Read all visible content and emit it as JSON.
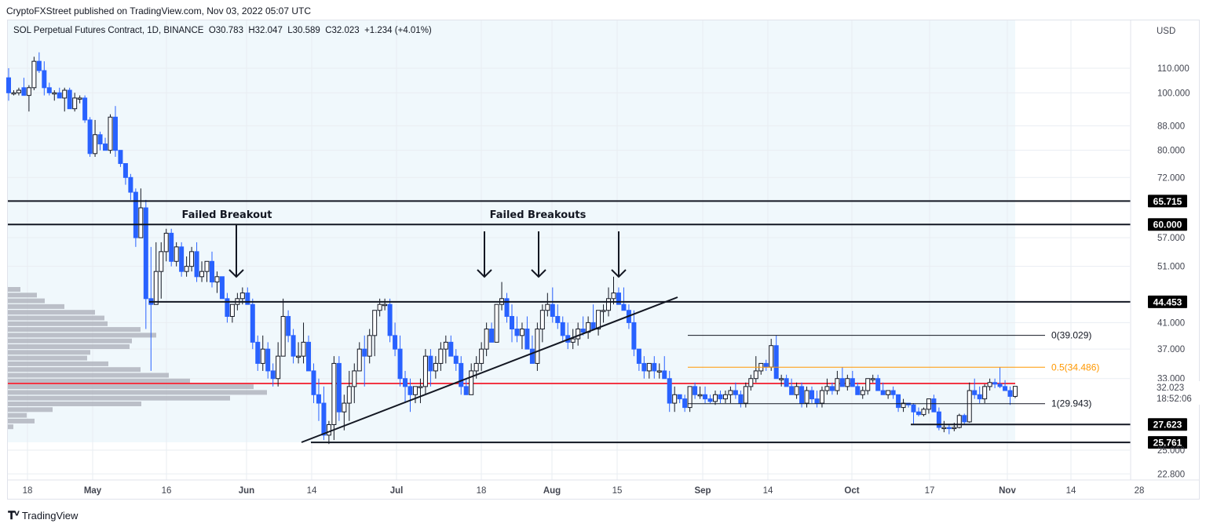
{
  "header": {
    "published_text": "CryptoFXStreet published on TradingView.com, Nov 03, 2022 05:07 UTC"
  },
  "legend": {
    "symbol": "SOL Perpetual Futures Contract, 1D, BINANCE",
    "open": "O30.783",
    "high": "H32.047",
    "low": "L30.589",
    "close": "C32.023",
    "change": "+1.234 (+4.01%)"
  },
  "footer": {
    "brand": "TradingView"
  },
  "colors": {
    "up_candle_border": "#131722",
    "up_candle_fill": "#ffffff",
    "down_candle": "#2962ff",
    "highlight_bg": "#f0f8fc",
    "poc_line": "#f23645",
    "fib_mid": "#ff9800",
    "grid": "#e9edf2",
    "volume_profile": "#b2b5be"
  },
  "chart_data": {
    "type": "candlestick",
    "title": "SOL Perpetual Futures Contract, 1D, BINANCE",
    "currency_label": "USD",
    "scale": "log",
    "ylim": [
      22.0,
      125.0
    ],
    "y_ticks": [
      "110.000",
      "100.000",
      "88.000",
      "80.000",
      "72.000",
      "57.000",
      "51.000",
      "41.000",
      "37.000",
      "33.000",
      "25.000",
      "22.800"
    ],
    "x_ticks": [
      "18",
      "May",
      "16",
      "Jun",
      "14",
      "Jul",
      "18",
      "Aug",
      "15",
      "Sep",
      "14",
      "Oct",
      "17",
      "Nov",
      "14",
      "28"
    ],
    "x_tick_bold": [
      false,
      true,
      false,
      true,
      false,
      true,
      false,
      true,
      false,
      true,
      false,
      true,
      false,
      true,
      false,
      false
    ],
    "current_price": {
      "value": "32.023",
      "countdown": "18:52:06"
    },
    "horizontal_levels": [
      {
        "label": "65.715",
        "value": 65.715
      },
      {
        "label": "60.000",
        "value": 60.0
      },
      {
        "label": "44.453",
        "value": 44.453
      },
      {
        "label": "27.623",
        "value": 27.623
      },
      {
        "label": "25.761",
        "value": 25.761
      }
    ],
    "fibonacci": [
      {
        "label": "0(39.029)",
        "value": 39.029
      },
      {
        "label": "0.5(34.486)",
        "value": 34.486
      },
      {
        "label": "1(29.943)",
        "value": 29.943
      }
    ],
    "poc_level": 31.9,
    "annotations": [
      {
        "text": "Failed Breakout",
        "arrows": 1
      },
      {
        "text": "Failed Breakouts",
        "arrows": 3
      }
    ],
    "trendline": {
      "from": [
        "Jun 13",
        25.5
      ],
      "to": [
        "Aug 26",
        46.5
      ]
    },
    "volume_profile_widths": [
      26,
      47,
      57,
      82,
      121,
      133,
      137,
      179,
      199,
      168,
      165,
      115,
      111,
      138,
      179,
      215,
      242,
      323,
      340,
      293,
      180,
      67,
      34,
      44,
      17
    ],
    "candles_ohlc_approx": [
      [
        106,
        110,
        97,
        100
      ],
      [
        100,
        101,
        99,
        100
      ],
      [
        100,
        102,
        99,
        101
      ],
      [
        102,
        106,
        99,
        99
      ],
      [
        99,
        103,
        93,
        102
      ],
      [
        102,
        115,
        101,
        113
      ],
      [
        113,
        117,
        108,
        109
      ],
      [
        109,
        113,
        99,
        102
      ],
      [
        102,
        104,
        99,
        100
      ],
      [
        100,
        101,
        97,
        100
      ],
      [
        100,
        102,
        98,
        98
      ],
      [
        98,
        102,
        93,
        101
      ],
      [
        101,
        102,
        94,
        94
      ],
      [
        94,
        100,
        93,
        98
      ],
      [
        98,
        99,
        96,
        98
      ],
      [
        98,
        99,
        89,
        90
      ],
      [
        90,
        91,
        78,
        79
      ],
      [
        79,
        90,
        78,
        85
      ],
      [
        85,
        86,
        80,
        82
      ],
      [
        82,
        84,
        80,
        80
      ],
      [
        80,
        92,
        79,
        91
      ],
      [
        91,
        95,
        78,
        80
      ],
      [
        80,
        80,
        75,
        76
      ],
      [
        76,
        76,
        70,
        72
      ],
      [
        72,
        73,
        66,
        68
      ],
      [
        68,
        69,
        55,
        57
      ],
      [
        57,
        69,
        57,
        64
      ],
      [
        64,
        66,
        40,
        45
      ],
      [
        45,
        55,
        34,
        44
      ],
      [
        44,
        56,
        45,
        50
      ],
      [
        50,
        56,
        45,
        54
      ],
      [
        54,
        59,
        52,
        58
      ],
      [
        58,
        59,
        51,
        52
      ],
      [
        52,
        56,
        51,
        55
      ],
      [
        55,
        56,
        49,
        50
      ],
      [
        50,
        53,
        49,
        51
      ],
      [
        51,
        55,
        50,
        54
      ],
      [
        54,
        56,
        48,
        49
      ],
      [
        49,
        52,
        48,
        50
      ],
      [
        50,
        52,
        48,
        52
      ],
      [
        52,
        54,
        47,
        48
      ],
      [
        48,
        50,
        46,
        49
      ],
      [
        49,
        49,
        45,
        45
      ],
      [
        45,
        46,
        41,
        42
      ],
      [
        42,
        44,
        41,
        44
      ],
      [
        44,
        46,
        43,
        45
      ],
      [
        45,
        47,
        44,
        46
      ],
      [
        46,
        47,
        44,
        44
      ],
      [
        44,
        45,
        37,
        38
      ],
      [
        38,
        39,
        34,
        35
      ],
      [
        35,
        39,
        34,
        37
      ],
      [
        37,
        38,
        33,
        34
      ],
      [
        34,
        35,
        32,
        33
      ],
      [
        33,
        38,
        32,
        36
      ],
      [
        36,
        45,
        36,
        42
      ],
      [
        42,
        43,
        38,
        39
      ],
      [
        39,
        40,
        35,
        36
      ],
      [
        36,
        38,
        35,
        36
      ],
      [
        36,
        41,
        35,
        38
      ],
      [
        38,
        39,
        34,
        34
      ],
      [
        34,
        35,
        30,
        31
      ],
      [
        31,
        33,
        28,
        30
      ],
      [
        30,
        32,
        26,
        26.5
      ],
      [
        26.5,
        28,
        25.6,
        27.6
      ],
      [
        27.6,
        36,
        26,
        35
      ],
      [
        35,
        36,
        28,
        29
      ],
      [
        29,
        31,
        27,
        30
      ],
      [
        30,
        34,
        28,
        32
      ],
      [
        32,
        35,
        30,
        34
      ],
      [
        34,
        38,
        34,
        37
      ],
      [
        37,
        39,
        32,
        36
      ],
      [
        36,
        40,
        35,
        39
      ],
      [
        39,
        42,
        36,
        43
      ],
      [
        43,
        45,
        42,
        44
      ],
      [
        44,
        45,
        43,
        44
      ],
      [
        44,
        45,
        38,
        39
      ],
      [
        39,
        41,
        36,
        37
      ],
      [
        37,
        39,
        32,
        33
      ],
      [
        33,
        34,
        30,
        32
      ],
      [
        32,
        33,
        29,
        31
      ],
      [
        31,
        32,
        30,
        32
      ],
      [
        32,
        33,
        30,
        32
      ],
      [
        32,
        37,
        31,
        36
      ],
      [
        36,
        37,
        32,
        34
      ],
      [
        34,
        36,
        33,
        35
      ],
      [
        35,
        38,
        34,
        37
      ],
      [
        37,
        39,
        35,
        38
      ],
      [
        38,
        39,
        36,
        36
      ],
      [
        36,
        37,
        34,
        35
      ],
      [
        35,
        36,
        31,
        32
      ],
      [
        32,
        33,
        31,
        31
      ],
      [
        31,
        35,
        31,
        34
      ],
      [
        34,
        36,
        33,
        35
      ],
      [
        35,
        38,
        34,
        37
      ],
      [
        37,
        41,
        36,
        40
      ],
      [
        40,
        41,
        38,
        38
      ],
      [
        38,
        44,
        38,
        44
      ],
      [
        44,
        48,
        43,
        45
      ],
      [
        45,
        46,
        41,
        42
      ],
      [
        42,
        44,
        38,
        40
      ],
      [
        40,
        42,
        38,
        39
      ],
      [
        39,
        41,
        37,
        40
      ],
      [
        40,
        42,
        37,
        37
      ],
      [
        37,
        39,
        35,
        35
      ],
      [
        35,
        41,
        34,
        40
      ],
      [
        40,
        44,
        38,
        43
      ],
      [
        43,
        46,
        42,
        44
      ],
      [
        44,
        47,
        41,
        42
      ],
      [
        42,
        44,
        40,
        41
      ],
      [
        41,
        42,
        38,
        39
      ],
      [
        39,
        41,
        37,
        38
      ],
      [
        38,
        40,
        37,
        38.5
      ],
      [
        38.5,
        41,
        37.5,
        40
      ],
      [
        40,
        42,
        39,
        39.5
      ],
      [
        39.5,
        42,
        38.5,
        41
      ],
      [
        41,
        44,
        40,
        40
      ],
      [
        40,
        43,
        39,
        43
      ],
      [
        43,
        44,
        41,
        43
      ],
      [
        43,
        47,
        42,
        45
      ],
      [
        45,
        49,
        44,
        46
      ],
      [
        46,
        47,
        44,
        44
      ],
      [
        44,
        47,
        43,
        43
      ],
      [
        43,
        44,
        40,
        41
      ],
      [
        41,
        43,
        36,
        37
      ],
      [
        37,
        37,
        34,
        35
      ],
      [
        35,
        36,
        33,
        34
      ],
      [
        34,
        35,
        33,
        35
      ],
      [
        35,
        36,
        33,
        34
      ],
      [
        34,
        35,
        33,
        34
      ],
      [
        34,
        36,
        33,
        33
      ],
      [
        33,
        34,
        29,
        30
      ],
      [
        30,
        32,
        29,
        31
      ],
      [
        31,
        31,
        30,
        30.5
      ],
      [
        30.5,
        31,
        29,
        29.5
      ],
      [
        29.5,
        32,
        29,
        32
      ],
      [
        32,
        32.5,
        30.5,
        31
      ],
      [
        31,
        32,
        30.5,
        31
      ],
      [
        31,
        32,
        30,
        30.5
      ],
      [
        30.5,
        31,
        30,
        30.2
      ],
      [
        30.2,
        31.5,
        29.8,
        31
      ],
      [
        31,
        31.5,
        30,
        30.5
      ],
      [
        30.5,
        31.5,
        30,
        31
      ],
      [
        31,
        32,
        30,
        31.5
      ],
      [
        31.5,
        32.5,
        30.5,
        31
      ],
      [
        31,
        31.5,
        29.5,
        30
      ],
      [
        30,
        32.5,
        29.5,
        32
      ],
      [
        32,
        33.5,
        31.5,
        33
      ],
      [
        33,
        36,
        32.5,
        34
      ],
      [
        34,
        35,
        33.5,
        35
      ],
      [
        35,
        35.5,
        34,
        34.5
      ],
      [
        34.5,
        38.5,
        34,
        37.5
      ],
      [
        37.5,
        39,
        33,
        33
      ],
      [
        33,
        33.5,
        32,
        33
      ],
      [
        33,
        33.5,
        32,
        32
      ],
      [
        32,
        33,
        31,
        31
      ],
      [
        31,
        32.5,
        30.5,
        32
      ],
      [
        32,
        32.5,
        29.5,
        30
      ],
      [
        30,
        32,
        29.5,
        31.5
      ],
      [
        31.5,
        32,
        30,
        30.5
      ],
      [
        30.5,
        31.5,
        29.5,
        30
      ],
      [
        30,
        32,
        29.5,
        31.5
      ],
      [
        31.5,
        33,
        31,
        32
      ],
      [
        32,
        32.5,
        31,
        31.5
      ],
      [
        31.5,
        34,
        31,
        33
      ],
      [
        33,
        34.5,
        32,
        32
      ],
      [
        32,
        33.5,
        31.5,
        33
      ],
      [
        33,
        34,
        32,
        32
      ],
      [
        32,
        32.5,
        31,
        31
      ],
      [
        31,
        32,
        30.5,
        31.5
      ],
      [
        31.5,
        33,
        31,
        33
      ],
      [
        33,
        33.5,
        32.5,
        33
      ],
      [
        33,
        33.5,
        31.5,
        31.5
      ],
      [
        31.5,
        32.5,
        31,
        31
      ],
      [
        31,
        31.5,
        30.5,
        31.5
      ],
      [
        31.5,
        32,
        30.5,
        31
      ],
      [
        31,
        31,
        29,
        29.5
      ],
      [
        29.5,
        30.5,
        29,
        30
      ],
      [
        30,
        30,
        29.5,
        29.8
      ],
      [
        29.8,
        30,
        27.7,
        29
      ],
      [
        29,
        29.5,
        28.5,
        28.7
      ],
      [
        28.7,
        29.5,
        28.5,
        29.3
      ],
      [
        29.3,
        30.5,
        28.8,
        30.5
      ],
      [
        30.5,
        31,
        29,
        29
      ],
      [
        29,
        29.5,
        27,
        27.3
      ],
      [
        27.3,
        28,
        26.8,
        27.3
      ],
      [
        27.3,
        27.6,
        26.6,
        27.2
      ],
      [
        27.2,
        27.8,
        26.9,
        27.3
      ],
      [
        27.3,
        28.8,
        27.2,
        28.6
      ],
      [
        28.6,
        28.8,
        27.6,
        27.9
      ],
      [
        27.9,
        32.5,
        27.8,
        31.5
      ],
      [
        31.5,
        33,
        30.5,
        31
      ],
      [
        31,
        32,
        30,
        30.5
      ],
      [
        30.5,
        32.3,
        30,
        32
      ],
      [
        32,
        33,
        31.5,
        32.5
      ],
      [
        32.5,
        33,
        31.8,
        32.3
      ],
      [
        32.3,
        34.5,
        31.8,
        32
      ],
      [
        32,
        32.8,
        31.5,
        31.5
      ],
      [
        31.5,
        32,
        29.8,
        30.8
      ],
      [
        30.8,
        32.05,
        30.59,
        32.02
      ]
    ]
  }
}
